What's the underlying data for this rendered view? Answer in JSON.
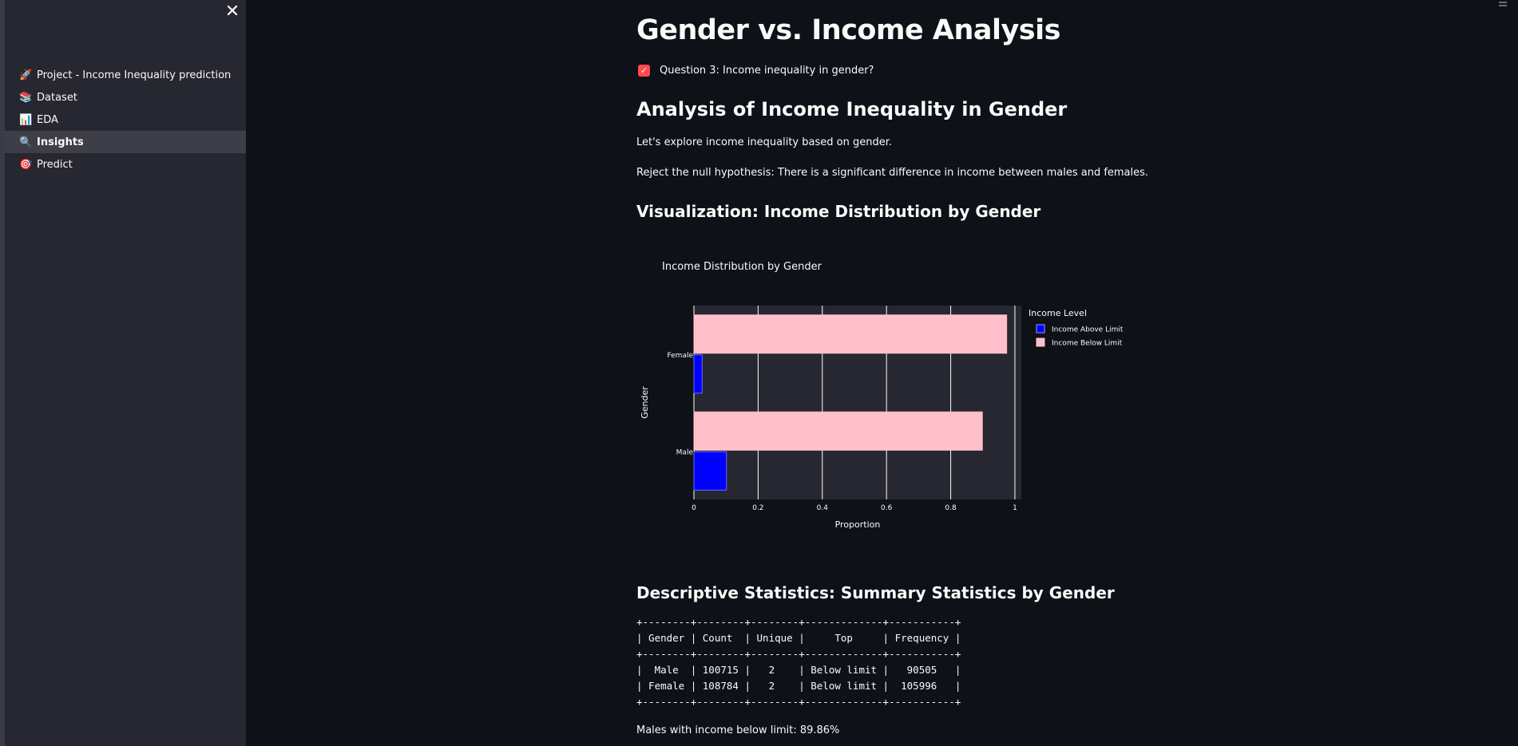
{
  "sidebar": {
    "close_icon": "close-icon",
    "items": [
      {
        "icon": "🚀",
        "icon_name": "rocket-icon",
        "label": "Project - Income Inequality prediction",
        "active": false
      },
      {
        "icon": "📚",
        "icon_name": "books-icon",
        "label": "Dataset",
        "active": false
      },
      {
        "icon": "📊",
        "icon_name": "bar-chart-icon",
        "label": "EDA",
        "active": false
      },
      {
        "icon": "🔍",
        "icon_name": "magnifier-icon",
        "label": "Insights",
        "active": true
      },
      {
        "icon": "🎯",
        "icon_name": "target-icon",
        "label": "Predict",
        "active": false
      }
    ]
  },
  "main": {
    "title": "Gender vs. Income Analysis",
    "checkbox_label": "Question 3: Income inequality in gender?",
    "checkbox_checked": true,
    "section_heading": "Analysis of Income Inequality in Gender",
    "paragraph1": "Let's explore income inequality based on gender.",
    "paragraph2": "Reject the null hypothesis: There is a significant difference in income between males and females.",
    "viz_heading": "Visualization: Income Distribution by Gender",
    "stats_heading": "Descriptive Statistics: Summary Statistics by Gender",
    "stats_table": "+--------+--------+--------+-------------+-----------+\n| Gender | Count  | Unique |     Top     | Frequency |\n+--------+--------+--------+-------------+-----------+\n|  Male  | 100715 |   2    | Below limit |   90505   |\n| Female | 108784 |   2    | Below limit |  105996   |\n+--------+--------+--------+-------------+-----------+",
    "summary_line": "Males with income below limit: 89.86%"
  },
  "chart_data": {
    "type": "bar",
    "orientation": "horizontal",
    "title": "Income Distribution by Gender",
    "xlabel": "Proportion",
    "ylabel": "Gender",
    "categories": [
      "Male",
      "Female"
    ],
    "xlim": [
      0,
      1.02
    ],
    "xticks": [
      0,
      0.2,
      0.4,
      0.6,
      0.8,
      1
    ],
    "xtick_labels": [
      "0",
      "0.2",
      "0.4",
      "0.6",
      "0.8",
      "1"
    ],
    "legend_title": "Income Level",
    "legend_position": "top-right",
    "grid": true,
    "series": [
      {
        "name": "Income Above Limit",
        "color": "#0000ff",
        "values": [
          0.1014,
          0.0256
        ]
      },
      {
        "name": "Income Below Limit",
        "color": "#ffc0cb",
        "values": [
          0.8986,
          0.9744
        ]
      }
    ],
    "plot_bg": "#262730",
    "text_color": "#fafafa"
  }
}
